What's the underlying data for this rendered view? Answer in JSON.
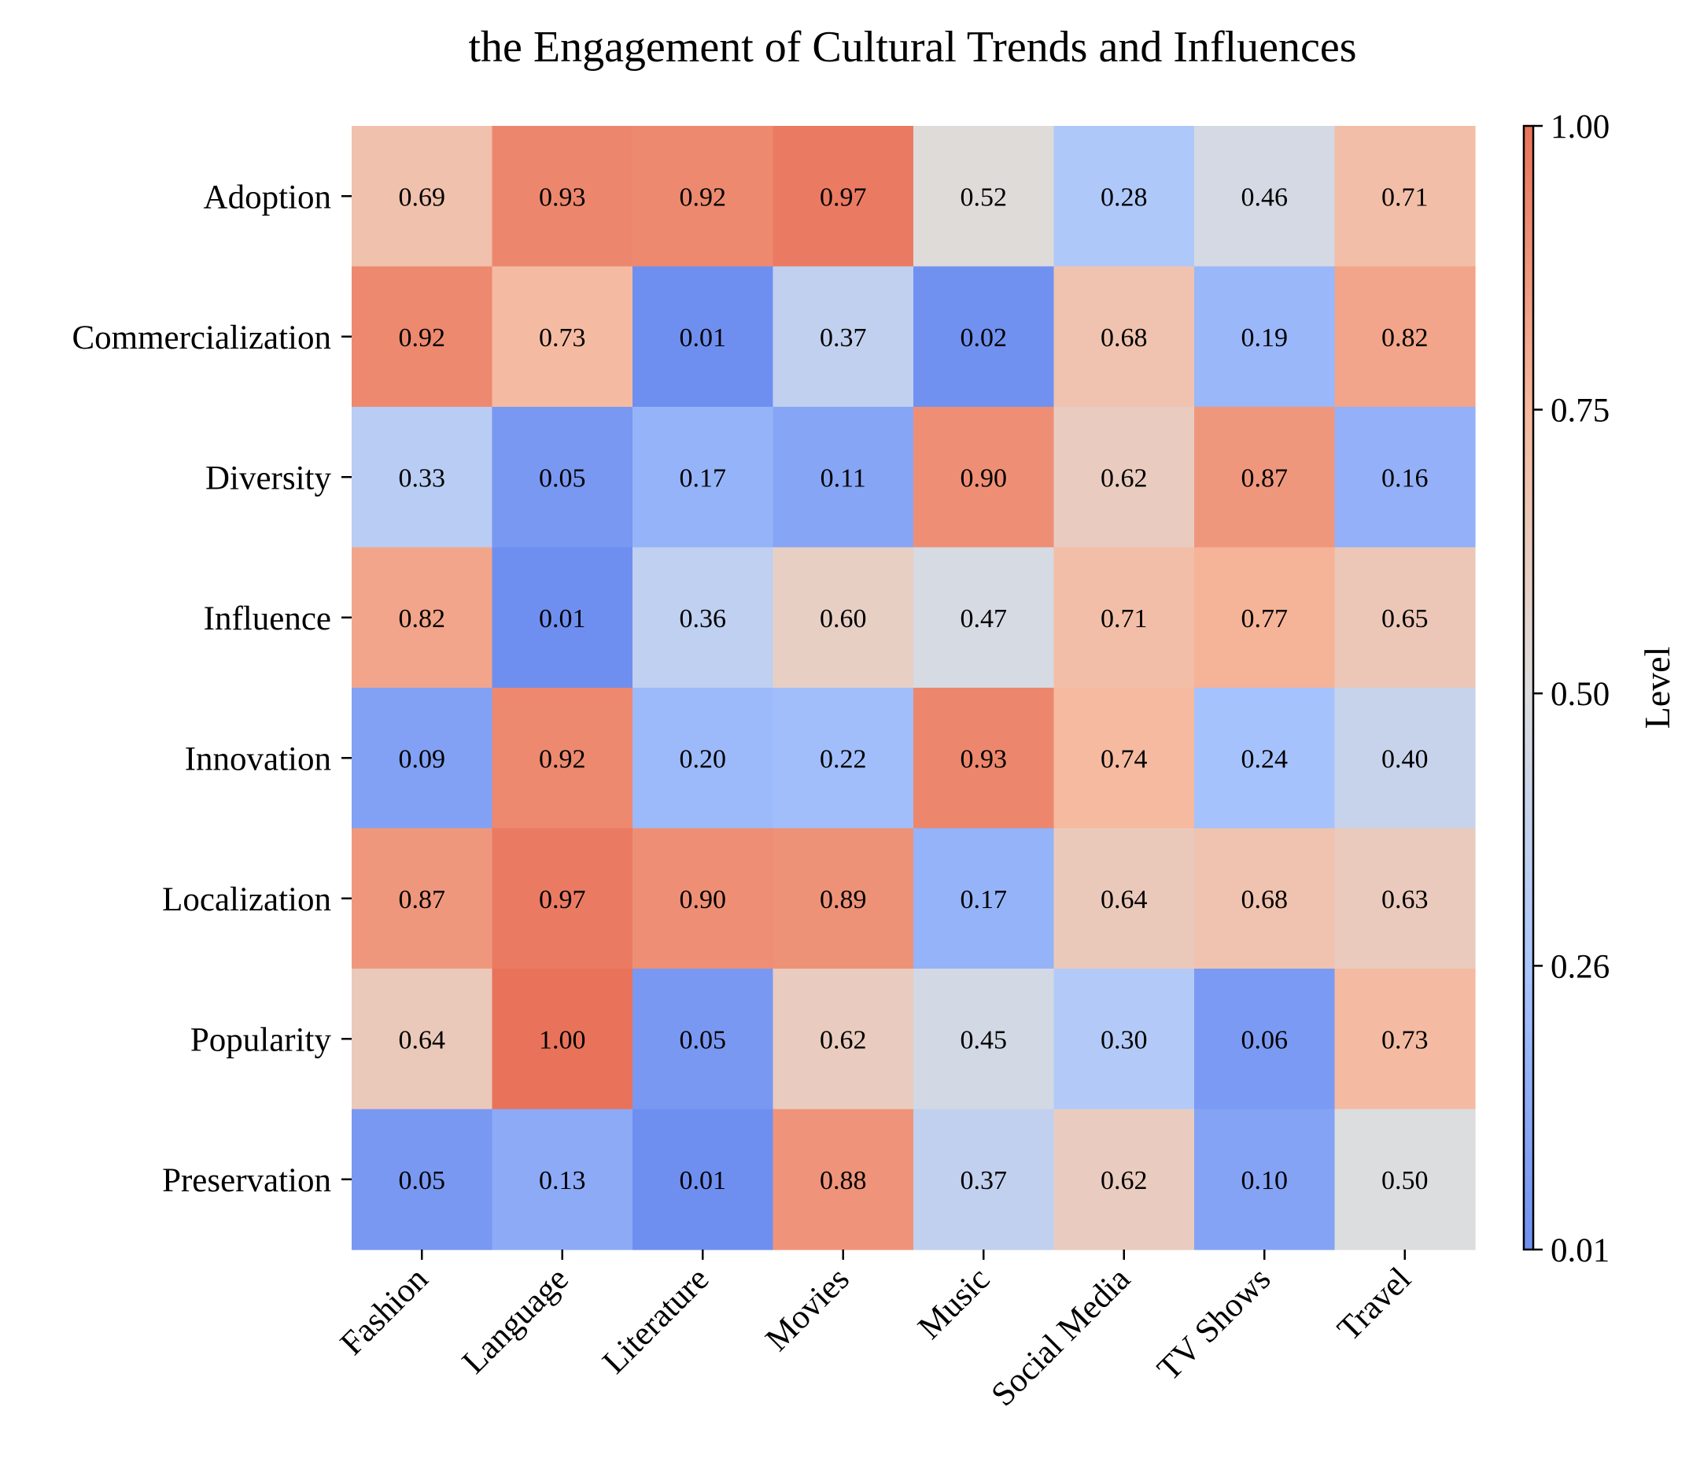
{
  "chart_data": {
    "type": "heatmap",
    "title": "the Engagement of Cultural Trends and Influences",
    "xlabel": "",
    "ylabel": "",
    "x_categories": [
      "Fashion",
      "Language",
      "Literature",
      "Movies",
      "Music",
      "Social Media",
      "TV Shows",
      "Travel"
    ],
    "y_categories": [
      "Adoption",
      "Commercialization",
      "Diversity",
      "Influence",
      "Innovation",
      "Localization",
      "Popularity",
      "Preservation"
    ],
    "values": [
      [
        0.69,
        0.93,
        0.92,
        0.97,
        0.52,
        0.28,
        0.46,
        0.71
      ],
      [
        0.92,
        0.73,
        0.01,
        0.37,
        0.02,
        0.68,
        0.19,
        0.82
      ],
      [
        0.33,
        0.05,
        0.17,
        0.11,
        0.9,
        0.62,
        0.87,
        0.16
      ],
      [
        0.82,
        0.01,
        0.36,
        0.6,
        0.47,
        0.71,
        0.77,
        0.65
      ],
      [
        0.09,
        0.92,
        0.2,
        0.22,
        0.93,
        0.74,
        0.24,
        0.4
      ],
      [
        0.87,
        0.97,
        0.9,
        0.89,
        0.17,
        0.64,
        0.68,
        0.63
      ],
      [
        0.64,
        1.0,
        0.05,
        0.62,
        0.45,
        0.3,
        0.06,
        0.73
      ],
      [
        0.05,
        0.13,
        0.01,
        0.88,
        0.37,
        0.62,
        0.1,
        0.5
      ]
    ],
    "colorbar": {
      "label": "Level",
      "range": [
        0.01,
        1.0
      ],
      "ticks": [
        "0.01",
        "0.26",
        "0.50",
        "0.75",
        "1.00"
      ],
      "colormap": "coolwarm",
      "low_color": "#6f8ff0",
      "mid_color": "#dddddd",
      "high_color": "#e8735a"
    },
    "grid": false,
    "legend": "colorbar-right"
  }
}
